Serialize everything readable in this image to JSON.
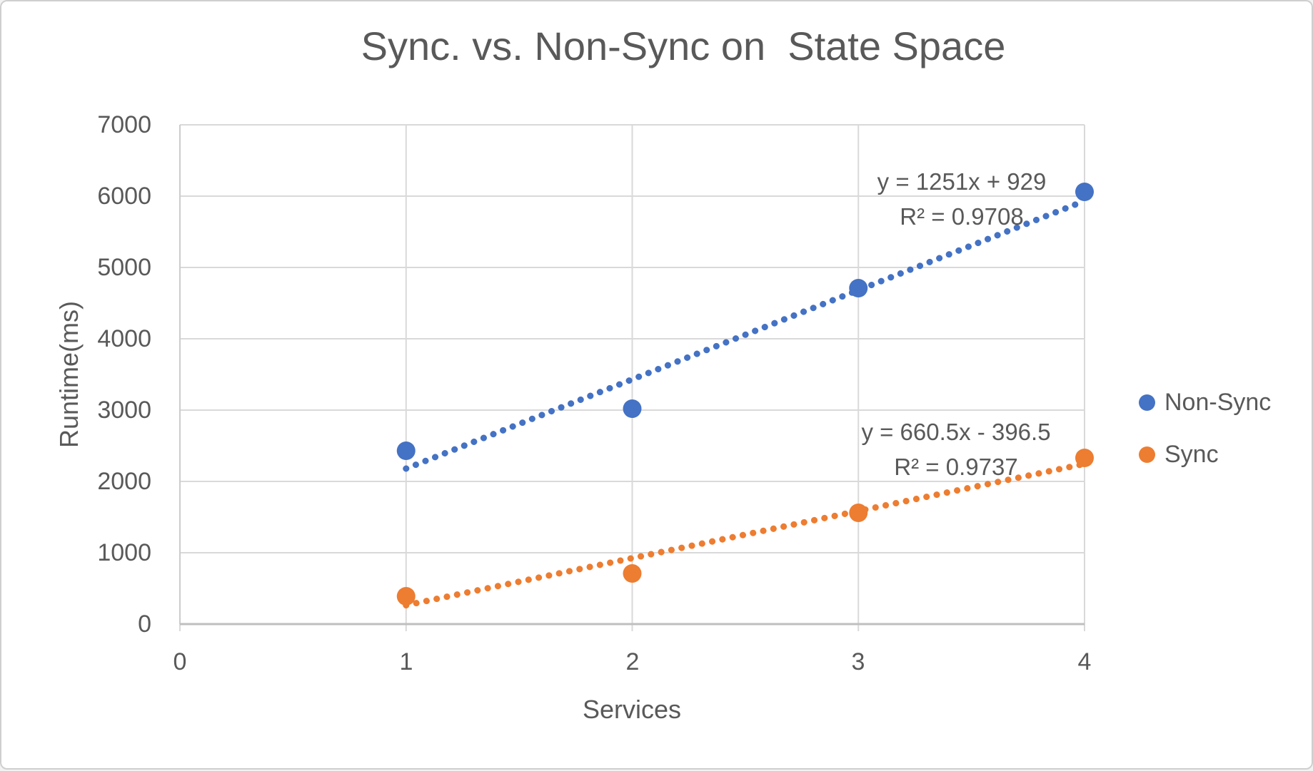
{
  "window": {
    "background": "#ffffff",
    "border_color": "#cfcfcf"
  },
  "chart_data": {
    "type": "scatter",
    "title": "Sync. vs. Non-Sync on  State Space",
    "xlabel": "Services",
    "ylabel": "Runtime(ms)",
    "xlim": [
      0,
      4
    ],
    "ylim": [
      0,
      7000
    ],
    "x_ticks": [
      0,
      1,
      2,
      3,
      4
    ],
    "y_ticks": [
      0,
      1000,
      2000,
      3000,
      4000,
      5000,
      6000,
      7000
    ],
    "x_tick_labels": [
      "0",
      "1",
      "2",
      "3",
      "4"
    ],
    "y_tick_labels": [
      "0",
      "1000",
      "2000",
      "3000",
      "4000",
      "5000",
      "6000",
      "7000"
    ],
    "grid": true,
    "legend_position": "right",
    "x": [
      1,
      2,
      3,
      4
    ],
    "series": [
      {
        "name": "Non-Sync",
        "color": "#4472C4",
        "values": [
          2430,
          3020,
          4710,
          6060
        ],
        "trendline": {
          "type": "linear",
          "slope": 1251,
          "intercept": 929,
          "style": "dotted",
          "equation": "y = 1251x + 929",
          "r_squared_label": "R² = 0.9708"
        }
      },
      {
        "name": "Sync",
        "color": "#ED7D31",
        "values": [
          390,
          710,
          1560,
          2330
        ],
        "trendline": {
          "type": "linear",
          "slope": 660.5,
          "intercept": -396.5,
          "style": "dotted",
          "equation": "y = 660.5x - 396.5",
          "r_squared_label": "R² = 0.9737"
        }
      }
    ],
    "colors": {
      "gridline": "#D9D9D9",
      "axis_line": "#BFBFBF",
      "text": "#595959"
    }
  }
}
